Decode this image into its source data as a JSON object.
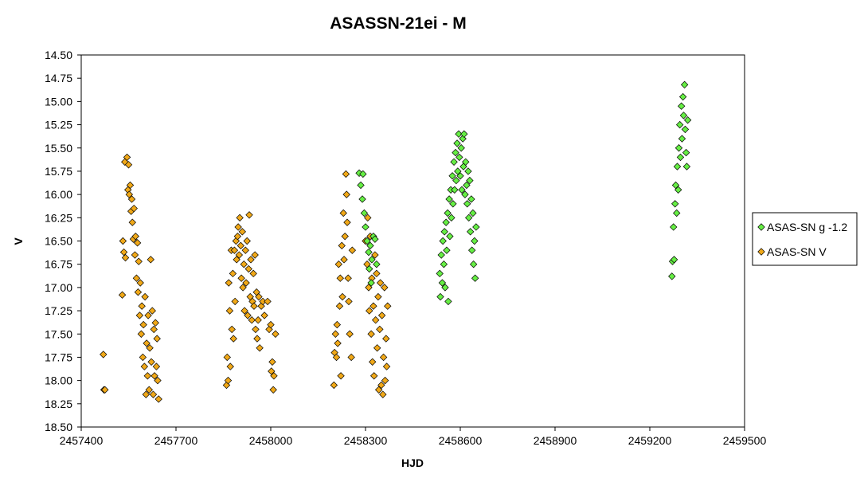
{
  "chart_data": {
    "type": "scatter",
    "title": "ASASSN-21ei - M",
    "xlabel": "HJD",
    "ylabel": "V",
    "xlim": [
      2457400,
      2459500
    ],
    "ylim": [
      14.5,
      18.5
    ],
    "y_inverted": true,
    "x_ticks": [
      "2457400",
      "2457700",
      "2458000",
      "2458300",
      "2458600",
      "2458900",
      "2459200",
      "2459500"
    ],
    "y_ticks": [
      "14.50",
      "14.75",
      "15.00",
      "15.25",
      "15.50",
      "15.75",
      "16.00",
      "16.25",
      "16.50",
      "16.75",
      "17.00",
      "17.25",
      "17.50",
      "17.75",
      "18.00",
      "18.25",
      "18.50"
    ],
    "grid": false,
    "legend_position": "right",
    "series": [
      {
        "name": "ASAS-SN g -1.2",
        "color": "#66ee44",
        "marker": "diamond",
        "points": [
          [
            2458280,
            15.77
          ],
          [
            2458285,
            15.9
          ],
          [
            2458290,
            16.05
          ],
          [
            2458292,
            15.78
          ],
          [
            2458296,
            16.2
          ],
          [
            2458300,
            16.35
          ],
          [
            2458305,
            16.5
          ],
          [
            2458310,
            16.62
          ],
          [
            2458312,
            16.8
          ],
          [
            2458315,
            16.55
          ],
          [
            2458318,
            16.95
          ],
          [
            2458320,
            16.7
          ],
          [
            2458325,
            16.45
          ],
          [
            2458330,
            16.48
          ],
          [
            2458335,
            16.75
          ],
          [
            2458535,
            16.85
          ],
          [
            2458537,
            17.1
          ],
          [
            2458540,
            16.65
          ],
          [
            2458543,
            16.95
          ],
          [
            2458545,
            16.5
          ],
          [
            2458548,
            16.75
          ],
          [
            2458550,
            16.4
          ],
          [
            2458552,
            17.0
          ],
          [
            2458555,
            16.3
          ],
          [
            2458557,
            16.6
          ],
          [
            2458560,
            16.2
          ],
          [
            2458562,
            17.15
          ],
          [
            2458565,
            16.05
          ],
          [
            2458567,
            16.45
          ],
          [
            2458570,
            15.95
          ],
          [
            2458572,
            16.25
          ],
          [
            2458575,
            15.8
          ],
          [
            2458577,
            16.1
          ],
          [
            2458580,
            15.65
          ],
          [
            2458582,
            15.95
          ],
          [
            2458585,
            15.55
          ],
          [
            2458587,
            15.85
          ],
          [
            2458590,
            15.45
          ],
          [
            2458592,
            15.75
          ],
          [
            2458595,
            15.35
          ],
          [
            2458597,
            15.6
          ],
          [
            2458600,
            15.8
          ],
          [
            2458603,
            15.5
          ],
          [
            2458605,
            15.95
          ],
          [
            2458608,
            15.4
          ],
          [
            2458610,
            15.7
          ],
          [
            2458612,
            15.35
          ],
          [
            2458615,
            16.0
          ],
          [
            2458617,
            15.65
          ],
          [
            2458620,
            15.9
          ],
          [
            2458622,
            16.1
          ],
          [
            2458625,
            15.75
          ],
          [
            2458627,
            16.25
          ],
          [
            2458630,
            15.85
          ],
          [
            2458632,
            16.4
          ],
          [
            2458635,
            16.05
          ],
          [
            2458637,
            16.6
          ],
          [
            2458640,
            16.2
          ],
          [
            2458642,
            16.75
          ],
          [
            2458645,
            16.5
          ],
          [
            2458647,
            16.9
          ],
          [
            2458650,
            16.35
          ],
          [
            2459270,
            16.88
          ],
          [
            2459272,
            16.72
          ],
          [
            2459275,
            16.35
          ],
          [
            2459277,
            16.7
          ],
          [
            2459280,
            16.1
          ],
          [
            2459282,
            15.9
          ],
          [
            2459285,
            16.2
          ],
          [
            2459287,
            15.7
          ],
          [
            2459290,
            15.95
          ],
          [
            2459292,
            15.5
          ],
          [
            2459295,
            15.25
          ],
          [
            2459297,
            15.6
          ],
          [
            2459300,
            15.05
          ],
          [
            2459302,
            15.4
          ],
          [
            2459305,
            14.95
          ],
          [
            2459307,
            15.15
          ],
          [
            2459310,
            14.82
          ],
          [
            2459312,
            15.3
          ],
          [
            2459315,
            15.55
          ],
          [
            2459317,
            15.7
          ],
          [
            2459320,
            15.2
          ]
        ]
      },
      {
        "name": "ASAS-SN V",
        "color": "#f0a818",
        "marker": "diamond",
        "points": [
          [
            2457470,
            17.72
          ],
          [
            2457472,
            18.1
          ],
          [
            2457475,
            18.1
          ],
          [
            2457530,
            17.08
          ],
          [
            2457532,
            16.5
          ],
          [
            2457535,
            16.62
          ],
          [
            2457538,
            15.65
          ],
          [
            2457540,
            16.68
          ],
          [
            2457545,
            15.6
          ],
          [
            2457548,
            15.95
          ],
          [
            2457550,
            15.68
          ],
          [
            2457552,
            16.0
          ],
          [
            2457555,
            15.9
          ],
          [
            2457558,
            16.18
          ],
          [
            2457560,
            16.05
          ],
          [
            2457562,
            16.3
          ],
          [
            2457565,
            16.48
          ],
          [
            2457567,
            16.15
          ],
          [
            2457570,
            16.65
          ],
          [
            2457572,
            16.45
          ],
          [
            2457575,
            16.9
          ],
          [
            2457578,
            16.52
          ],
          [
            2457580,
            17.05
          ],
          [
            2457582,
            16.72
          ],
          [
            2457585,
            17.3
          ],
          [
            2457587,
            16.95
          ],
          [
            2457590,
            17.5
          ],
          [
            2457592,
            17.2
          ],
          [
            2457595,
            17.75
          ],
          [
            2457597,
            17.4
          ],
          [
            2457600,
            17.85
          ],
          [
            2457602,
            17.1
          ],
          [
            2457605,
            18.15
          ],
          [
            2457607,
            17.6
          ],
          [
            2457610,
            17.95
          ],
          [
            2457612,
            17.3
          ],
          [
            2457615,
            18.1
          ],
          [
            2457617,
            17.65
          ],
          [
            2457620,
            16.7
          ],
          [
            2457622,
            17.8
          ],
          [
            2457625,
            17.25
          ],
          [
            2457628,
            18.15
          ],
          [
            2457630,
            17.45
          ],
          [
            2457632,
            17.95
          ],
          [
            2457635,
            17.38
          ],
          [
            2457638,
            17.85
          ],
          [
            2457640,
            17.55
          ],
          [
            2457642,
            18.0
          ],
          [
            2457645,
            18.2
          ],
          [
            2457860,
            18.05
          ],
          [
            2457862,
            17.75
          ],
          [
            2457865,
            18.0
          ],
          [
            2457867,
            16.95
          ],
          [
            2457870,
            17.25
          ],
          [
            2457872,
            17.85
          ],
          [
            2457875,
            16.6
          ],
          [
            2457877,
            17.45
          ],
          [
            2457880,
            16.85
          ],
          [
            2457882,
            17.55
          ],
          [
            2457885,
            16.6
          ],
          [
            2457887,
            17.15
          ],
          [
            2457890,
            16.5
          ],
          [
            2457892,
            16.7
          ],
          [
            2457895,
            16.45
          ],
          [
            2457897,
            16.35
          ],
          [
            2457900,
            16.65
          ],
          [
            2457902,
            16.25
          ],
          [
            2457905,
            16.55
          ],
          [
            2457907,
            16.9
          ],
          [
            2457910,
            16.4
          ],
          [
            2457912,
            17.0
          ],
          [
            2457915,
            16.75
          ],
          [
            2457917,
            17.25
          ],
          [
            2457920,
            16.6
          ],
          [
            2457922,
            16.95
          ],
          [
            2457925,
            16.5
          ],
          [
            2457927,
            17.3
          ],
          [
            2457930,
            16.8
          ],
          [
            2457932,
            16.22
          ],
          [
            2457935,
            17.1
          ],
          [
            2457937,
            16.7
          ],
          [
            2457940,
            17.35
          ],
          [
            2457942,
            17.15
          ],
          [
            2457945,
            16.85
          ],
          [
            2457947,
            17.2
          ],
          [
            2457950,
            16.65
          ],
          [
            2457952,
            17.45
          ],
          [
            2457955,
            17.05
          ],
          [
            2457957,
            17.55
          ],
          [
            2457960,
            17.35
          ],
          [
            2457962,
            17.1
          ],
          [
            2457965,
            17.65
          ],
          [
            2457970,
            17.2
          ],
          [
            2457975,
            17.15
          ],
          [
            2457980,
            17.3
          ],
          [
            2457990,
            17.15
          ],
          [
            2457995,
            17.45
          ],
          [
            2458000,
            17.4
          ],
          [
            2458002,
            17.9
          ],
          [
            2458005,
            17.8
          ],
          [
            2458008,
            18.1
          ],
          [
            2458010,
            17.95
          ],
          [
            2458015,
            17.5
          ],
          [
            2458200,
            18.05
          ],
          [
            2458202,
            17.7
          ],
          [
            2458205,
            17.5
          ],
          [
            2458208,
            17.75
          ],
          [
            2458210,
            17.4
          ],
          [
            2458212,
            17.6
          ],
          [
            2458215,
            16.75
          ],
          [
            2458218,
            17.2
          ],
          [
            2458220,
            16.9
          ],
          [
            2458222,
            17.95
          ],
          [
            2458225,
            16.55
          ],
          [
            2458227,
            17.1
          ],
          [
            2458230,
            16.2
          ],
          [
            2458232,
            16.7
          ],
          [
            2458235,
            16.45
          ],
          [
            2458238,
            15.78
          ],
          [
            2458240,
            16.0
          ],
          [
            2458242,
            16.3
          ],
          [
            2458245,
            16.9
          ],
          [
            2458247,
            17.15
          ],
          [
            2458250,
            17.5
          ],
          [
            2458255,
            17.75
          ],
          [
            2458258,
            16.6
          ],
          [
            2458300,
            16.5
          ],
          [
            2458305,
            16.75
          ],
          [
            2458307,
            16.25
          ],
          [
            2458310,
            17.0
          ],
          [
            2458312,
            17.25
          ],
          [
            2458315,
            16.45
          ],
          [
            2458318,
            17.5
          ],
          [
            2458320,
            16.9
          ],
          [
            2458322,
            17.8
          ],
          [
            2458325,
            17.2
          ],
          [
            2458327,
            17.95
          ],
          [
            2458330,
            16.65
          ],
          [
            2458332,
            17.35
          ],
          [
            2458335,
            16.85
          ],
          [
            2458337,
            17.65
          ],
          [
            2458340,
            17.1
          ],
          [
            2458342,
            18.1
          ],
          [
            2458345,
            17.45
          ],
          [
            2458347,
            16.95
          ],
          [
            2458350,
            18.05
          ],
          [
            2458352,
            17.3
          ],
          [
            2458355,
            18.15
          ],
          [
            2458357,
            17.75
          ],
          [
            2458360,
            17.0
          ],
          [
            2458362,
            18.0
          ],
          [
            2458365,
            17.55
          ],
          [
            2458367,
            17.85
          ],
          [
            2458370,
            17.2
          ]
        ]
      }
    ]
  }
}
